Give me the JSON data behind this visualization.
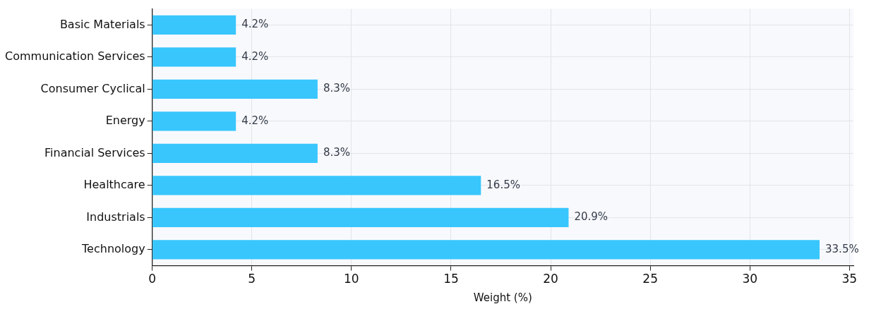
{
  "chart_data": {
    "type": "bar",
    "orientation": "horizontal",
    "xlabel": "Weight (%)",
    "categories": [
      "Basic Materials",
      "Communication Services",
      "Consumer Cyclical",
      "Energy",
      "Financial Services",
      "Healthcare",
      "Industrials",
      "Technology"
    ],
    "values": [
      4.2,
      4.2,
      8.3,
      4.2,
      8.3,
      16.5,
      20.9,
      33.5
    ],
    "value_labels": [
      "4.2%",
      "4.2%",
      "8.3%",
      "4.2%",
      "8.3%",
      "16.5%",
      "20.9%",
      "33.5%"
    ],
    "color": "#38c6fd",
    "xlim": [
      0,
      35.2
    ],
    "xticks": [
      0,
      5,
      10,
      15,
      20,
      25,
      30,
      35
    ],
    "grid": true
  }
}
